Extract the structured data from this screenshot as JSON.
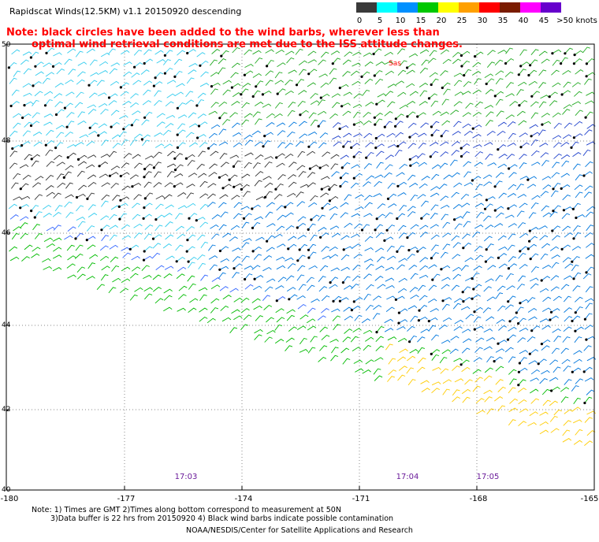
{
  "title": "Rapidscat Winds(12.5KM) v1.1 20150920 descending",
  "note": {
    "line1": "Note: black circles have been added to the wind barbs, wherever less than",
    "line2": "optimal wind retrieval conditions are met due to the ISS attitude changes."
  },
  "speed_scale": {
    "unit_label": ">50 knots",
    "labels": [
      "0",
      "5",
      "10",
      "15",
      "20",
      "25",
      "30",
      "35",
      "40",
      "45",
      ">50 knots"
    ],
    "colors": [
      "#3a3a3a",
      "#8a8a8a",
      "#00ffff",
      "#0090ff",
      "#00c800",
      "#ffff00",
      "#ffa000",
      "#ff0000",
      "#7a1b00",
      "#ff00ff",
      "#6600cc"
    ]
  },
  "map": {
    "lat_labels": [
      "50",
      "48",
      "46",
      "44",
      "42",
      "40"
    ],
    "lon_labels": [
      "-180",
      "-177",
      "-174",
      "-171",
      "-168",
      "-165"
    ],
    "time_labels": [
      "17:03",
      "17:04",
      "17:05"
    ],
    "stray_mark": "Sas"
  },
  "footnote": {
    "line1": "Note: 1) Times are GMT 2)Times along bottom correspond to measurement at 50N",
    "line2": "3)Data buffer is 22 hrs from 20150920 4) Black wind barbs indicate possible contamination"
  },
  "credit": "NOAA/NESDIS/Center for Satellite Applications and Research"
}
